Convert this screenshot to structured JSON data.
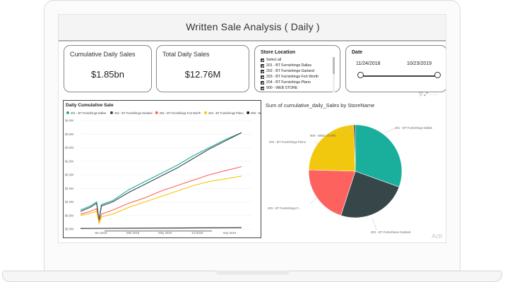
{
  "page_title": "Written Sale Analysis ( Daily )",
  "cards": {
    "cumulative": {
      "label": "Cumulative Daily Sales",
      "value": "$1.85bn"
    },
    "total": {
      "label": "Total Daily Sales",
      "value": "$12.76M"
    }
  },
  "store_slicer": {
    "title": "Store Location",
    "items": [
      "Select all",
      "201 - BT Furnishings Dallas",
      "202 - BT Furnishings Garland",
      "203 - BT Furnishings Fort Worth",
      "204 - BT Furnishings Plano",
      "900 - WEB STORE"
    ]
  },
  "date_slicer": {
    "title": "Date",
    "start": "11/24/2018",
    "end": "10/23/2019"
  },
  "toolbar": {
    "icons": [
      "filter-icon",
      "focus-mode-icon",
      "more-options-icon"
    ]
  },
  "watermark": "Acti",
  "line_chart": {
    "title": "Daily Cumulative Sale",
    "y_ticks": [
      "$4.0M",
      "$3.5M",
      "$3.0M",
      "$2.5M",
      "$2.0M",
      "$1.5M",
      "$1.0M",
      "$0.5M",
      "$0.0M"
    ],
    "x_ticks": [
      "Jan 2019",
      "Mar 2019",
      "May 2019",
      "Jul 2019",
      "Sep 2019"
    ]
  },
  "chart_data": [
    {
      "type": "line",
      "title": "Daily Cumulative Sale",
      "xlabel": "",
      "ylabel": "",
      "x_unit": "months since Nov 24, 2018",
      "y_unit": "$M",
      "ylim": [
        0,
        4.0
      ],
      "legend_position": "top",
      "series": [
        {
          "name": "201 - BT Furnishings Dallas",
          "color": "#1aaf9d",
          "points": [
            [
              0,
              0.7
            ],
            [
              0.6,
              0.85
            ],
            [
              1.0,
              1.0
            ],
            [
              1.15,
              0.35
            ],
            [
              1.3,
              0.9
            ],
            [
              2.0,
              1.05
            ],
            [
              3.0,
              1.45
            ],
            [
              4.0,
              1.75
            ],
            [
              5.0,
              2.05
            ],
            [
              6.0,
              2.35
            ],
            [
              7.0,
              2.7
            ],
            [
              8.0,
              3.0
            ],
            [
              9.0,
              3.3
            ],
            [
              10.0,
              3.55
            ]
          ]
        },
        {
          "name": "202 - BT Furnishings Garland",
          "color": "#374649",
          "points": [
            [
              0,
              0.65
            ],
            [
              0.6,
              0.8
            ],
            [
              1.0,
              0.95
            ],
            [
              1.15,
              0.3
            ],
            [
              1.3,
              0.85
            ],
            [
              2.0,
              1.0
            ],
            [
              3.0,
              1.35
            ],
            [
              4.0,
              1.65
            ],
            [
              5.0,
              1.95
            ],
            [
              6.0,
              2.25
            ],
            [
              7.0,
              2.6
            ],
            [
              8.0,
              2.95
            ],
            [
              9.0,
              3.25
            ],
            [
              10.0,
              3.55
            ]
          ]
        },
        {
          "name": "203 - BT Furnishings Fort Worth",
          "color": "#fd625e",
          "points": [
            [
              0,
              0.55
            ],
            [
              0.6,
              0.65
            ],
            [
              1.0,
              0.75
            ],
            [
              1.15,
              0.25
            ],
            [
              1.3,
              0.55
            ],
            [
              2.0,
              0.7
            ],
            [
              3.0,
              0.95
            ],
            [
              4.0,
              1.15
            ],
            [
              5.0,
              1.4
            ],
            [
              6.0,
              1.6
            ],
            [
              7.0,
              1.8
            ],
            [
              8.0,
              2.0
            ],
            [
              9.0,
              2.15
            ],
            [
              10.0,
              2.3
            ]
          ]
        },
        {
          "name": "204 - BT Furnishings Plano",
          "color": "#f2c80f",
          "points": [
            [
              0,
              0.5
            ],
            [
              0.6,
              0.58
            ],
            [
              1.0,
              0.65
            ],
            [
              1.15,
              0.2
            ],
            [
              1.3,
              0.45
            ],
            [
              2.0,
              0.55
            ],
            [
              3.0,
              0.8
            ],
            [
              4.0,
              1.0
            ],
            [
              5.0,
              1.2
            ],
            [
              6.0,
              1.4
            ],
            [
              7.0,
              1.6
            ],
            [
              8.0,
              1.75
            ],
            [
              9.0,
              1.85
            ],
            [
              10.0,
              1.95
            ]
          ]
        },
        {
          "name": "900 - WEB STORE",
          "color": "#222222",
          "points": [
            [
              0,
              0.02
            ],
            [
              10.0,
              0.05
            ]
          ]
        }
      ]
    },
    {
      "type": "pie",
      "title": "Sum of cumulative_daily_Sales by StoreName",
      "categories": [
        "201 - BT Furnishings Dallas",
        "202 - BT Furnishings Garland",
        "203 - BT Furnishings F...",
        "204 - BT Furnishings Plano",
        "900 - WEB STORE"
      ],
      "labels": [
        "201 - BT Furnishings Dallas",
        "202 - BT Furnishings Garland",
        "203 - BT Furnishings F...",
        "204 - BT Furnishings Plano",
        "900 - WEB STORE"
      ],
      "values": [
        30.5,
        24.5,
        20.5,
        24.0,
        0.5
      ],
      "colors": [
        "#1aaf9d",
        "#374649",
        "#fd625e",
        "#f2c80f",
        "#222222"
      ]
    }
  ]
}
